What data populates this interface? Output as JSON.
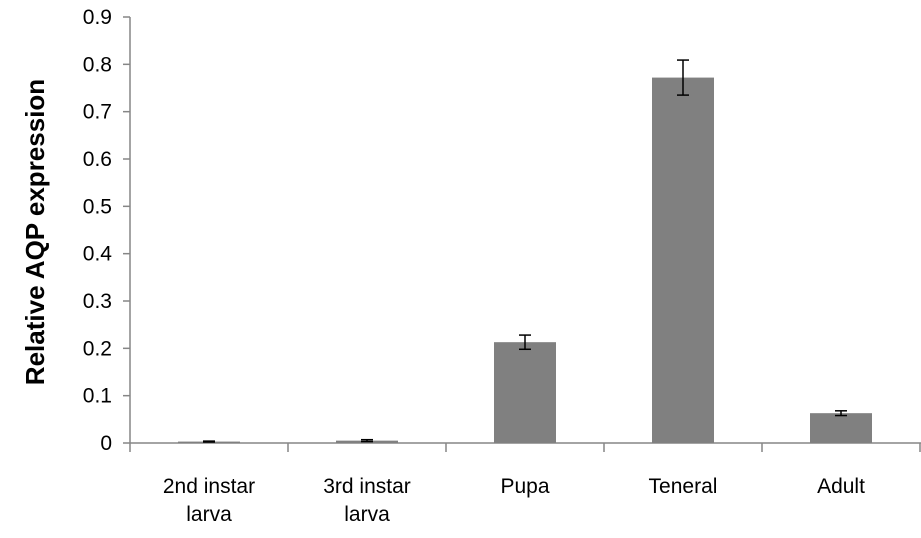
{
  "chart_data": {
    "type": "bar",
    "title": "",
    "xlabel": "",
    "ylabel": "Relative AQP expression",
    "ylim": [
      0,
      0.9
    ],
    "yticks": [
      "0",
      "0.1",
      "0.2",
      "0.3",
      "0.4",
      "0.5",
      "0.6",
      "0.7",
      "0.8",
      "0.9"
    ],
    "categories": [
      [
        "2nd instar",
        "larva"
      ],
      [
        "3rd instar",
        "larva"
      ],
      [
        "Pupa"
      ],
      [
        "Teneral"
      ],
      [
        "Adult"
      ]
    ],
    "values": [
      0.003,
      0.005,
      0.213,
      0.772,
      0.063
    ],
    "errors": [
      0.001,
      0.002,
      0.015,
      0.037,
      0.005
    ],
    "bar_color": "#808080",
    "grid": false,
    "legend": "none"
  }
}
